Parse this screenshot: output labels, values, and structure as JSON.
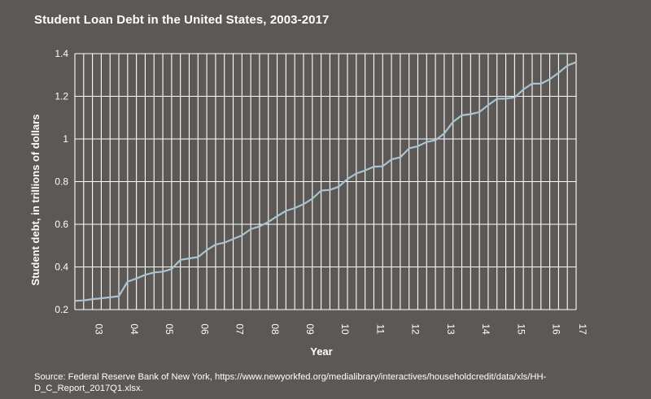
{
  "page": {
    "background": "#5b5856"
  },
  "chart_data": {
    "type": "line",
    "title": "Student Loan Debt in the United States, 2003-2017",
    "xlabel": "Year",
    "ylabel": "Student debt, in trillions of dollars",
    "ylim": [
      0.2,
      1.4
    ],
    "yticks": [
      0.2,
      0.4,
      0.6,
      0.8,
      1,
      1.2,
      1.4
    ],
    "ytick_labels": [
      "0.2",
      "0.4",
      "0.6",
      "0.8",
      "1",
      "1.2",
      "1.4"
    ],
    "xlim": [
      2003,
      2017.25
    ],
    "xticks": [
      2003.5,
      2004.5,
      2005.5,
      2006.5,
      2007.5,
      2008.5,
      2009.5,
      2010.5,
      2011.5,
      2012.5,
      2013.5,
      2014.5,
      2015.5,
      2016.5,
      2017.25
    ],
    "xtick_labels": [
      "03",
      "04",
      "05",
      "06",
      "07",
      "08",
      "09",
      "10",
      "11",
      "12",
      "13",
      "14",
      "15",
      "16",
      "17"
    ],
    "grid": true,
    "line_color": "#a9c4d2",
    "grid_color": "#ffffff",
    "series": [
      {
        "x": [
          2003.0,
          2003.25,
          2003.5,
          2003.75,
          2004.0,
          2004.25,
          2004.5,
          2004.75,
          2005.0,
          2005.25,
          2005.5,
          2005.75,
          2006.0,
          2006.25,
          2006.5,
          2006.75,
          2007.0,
          2007.25,
          2007.5,
          2007.75,
          2008.0,
          2008.25,
          2008.5,
          2008.75,
          2009.0,
          2009.25,
          2009.5,
          2009.75,
          2010.0,
          2010.25,
          2010.5,
          2010.75,
          2011.0,
          2011.25,
          2011.5,
          2011.75,
          2012.0,
          2012.25,
          2012.5,
          2012.75,
          2013.0,
          2013.25,
          2013.5,
          2013.75,
          2014.0,
          2014.25,
          2014.5,
          2014.75,
          2015.0,
          2015.25,
          2015.5,
          2015.75,
          2016.0,
          2016.25,
          2016.5,
          2016.75,
          2017.0,
          2017.25
        ],
        "values": [
          0.241,
          0.243,
          0.249,
          0.253,
          0.258,
          0.263,
          0.331,
          0.346,
          0.363,
          0.374,
          0.378,
          0.391,
          0.433,
          0.44,
          0.446,
          0.479,
          0.505,
          0.514,
          0.531,
          0.548,
          0.577,
          0.59,
          0.611,
          0.638,
          0.663,
          0.676,
          0.694,
          0.72,
          0.758,
          0.761,
          0.776,
          0.812,
          0.838,
          0.852,
          0.87,
          0.872,
          0.904,
          0.914,
          0.956,
          0.966,
          0.986,
          0.994,
          1.026,
          1.08,
          1.111,
          1.116,
          1.126,
          1.159,
          1.188,
          1.189,
          1.195,
          1.232,
          1.26,
          1.259,
          1.28,
          1.31,
          1.344,
          1.36
        ]
      }
    ]
  },
  "source": "Source: Federal Reserve Bank of New York, https://www.newyorkfed.org/medialibrary/interactives/householdcredit/data/xls/HH-D_C_Report_2017Q1.xlsx."
}
